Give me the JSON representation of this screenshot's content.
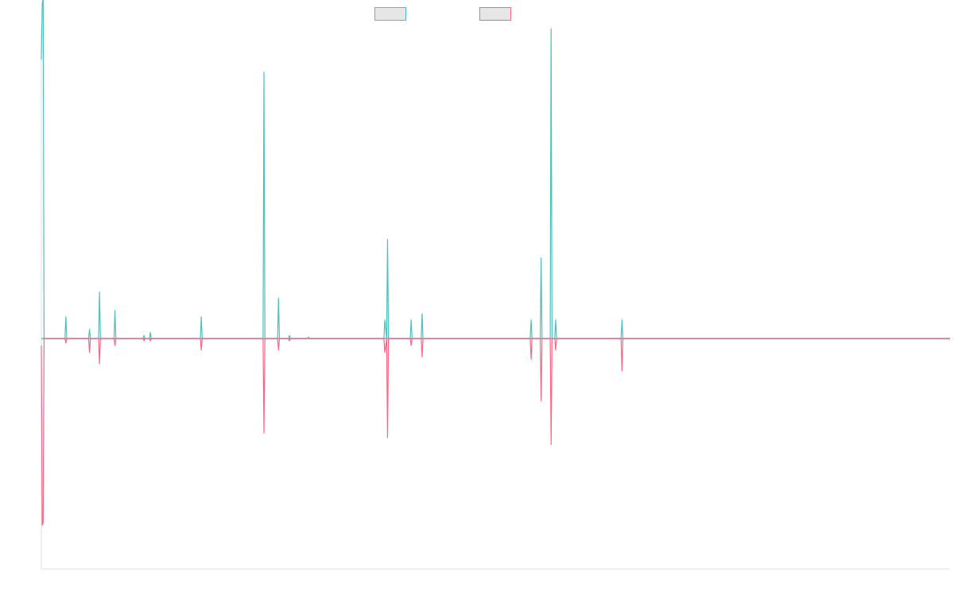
{
  "chart_data": {
    "type": "line",
    "title": "",
    "xlabel": "",
    "ylabel": "",
    "grid": false,
    "legend": {
      "placement": "top-center",
      "entries": [
        {
          "series_index": 0,
          "label": ""
        },
        {
          "series_index": 1,
          "label": ""
        }
      ]
    },
    "x_range": [
      0,
      100
    ],
    "y_range": [
      -100,
      100
    ],
    "baseline": 0,
    "colors": {
      "series_1": "#4bc0c0",
      "series_2": "#ff6384",
      "baseline": "#7aa5b7",
      "axis": "#e0e0e0",
      "legend_fill": "#e6e6e6"
    },
    "series": [
      {
        "color": "#4bc0c0",
        "points": [
          [
            0,
            90
          ],
          [
            0.1,
            108
          ],
          [
            0.2,
            110
          ],
          [
            0.3,
            0
          ],
          [
            2.6,
            0
          ],
          [
            2.7,
            7
          ],
          [
            2.8,
            0
          ],
          [
            5.2,
            0
          ],
          [
            5.3,
            3
          ],
          [
            5.4,
            0
          ],
          [
            6.3,
            0
          ],
          [
            6.4,
            15
          ],
          [
            6.5,
            0
          ],
          [
            8.0,
            0
          ],
          [
            8.1,
            9
          ],
          [
            8.2,
            0
          ],
          [
            11.2,
            0
          ],
          [
            11.3,
            1
          ],
          [
            11.4,
            0
          ],
          [
            11.9,
            0
          ],
          [
            12.0,
            2
          ],
          [
            12.1,
            0
          ],
          [
            17.5,
            0
          ],
          [
            17.6,
            7
          ],
          [
            17.7,
            0
          ],
          [
            24.4,
            0
          ],
          [
            24.5,
            86
          ],
          [
            24.6,
            0
          ],
          [
            26.0,
            0
          ],
          [
            26.1,
            13
          ],
          [
            26.2,
            0
          ],
          [
            27.2,
            0
          ],
          [
            27.3,
            1
          ],
          [
            27.4,
            0
          ],
          [
            29.3,
            0
          ],
          [
            29.4,
            0.5
          ],
          [
            29.5,
            0
          ],
          [
            37.7,
            0
          ],
          [
            37.8,
            6
          ],
          [
            38.0,
            0
          ],
          [
            38.1,
            32
          ],
          [
            38.2,
            0
          ],
          [
            40.6,
            0
          ],
          [
            40.7,
            6
          ],
          [
            40.8,
            0
          ],
          [
            41.8,
            0
          ],
          [
            41.9,
            8
          ],
          [
            42.0,
            0
          ],
          [
            53.8,
            0
          ],
          [
            53.9,
            6
          ],
          [
            54.0,
            0
          ],
          [
            54.9,
            0
          ],
          [
            55.0,
            26
          ],
          [
            55.1,
            0
          ],
          [
            56.0,
            0
          ],
          [
            56.1,
            100
          ],
          [
            56.2,
            0
          ],
          [
            56.5,
            0
          ],
          [
            56.6,
            6
          ],
          [
            56.7,
            0
          ],
          [
            63.8,
            0
          ],
          [
            63.9,
            6
          ],
          [
            64.0,
            0
          ],
          [
            100,
            0
          ]
        ]
      },
      {
        "color": "#ff6384",
        "points": [
          [
            0,
            -3
          ],
          [
            0.1,
            -81
          ],
          [
            0.2,
            -80
          ],
          [
            0.3,
            0
          ],
          [
            2.6,
            0
          ],
          [
            2.7,
            -2
          ],
          [
            2.8,
            0
          ],
          [
            5.2,
            0
          ],
          [
            5.3,
            -6
          ],
          [
            5.4,
            0
          ],
          [
            6.3,
            0
          ],
          [
            6.4,
            -11
          ],
          [
            6.5,
            0
          ],
          [
            8.0,
            0
          ],
          [
            8.1,
            -3
          ],
          [
            8.2,
            0
          ],
          [
            11.2,
            0
          ],
          [
            11.3,
            -1
          ],
          [
            11.4,
            0
          ],
          [
            11.9,
            0
          ],
          [
            12.0,
            -1
          ],
          [
            12.1,
            0
          ],
          [
            17.5,
            0
          ],
          [
            17.6,
            -5
          ],
          [
            17.7,
            0
          ],
          [
            24.4,
            0
          ],
          [
            24.5,
            -41
          ],
          [
            24.6,
            0
          ],
          [
            26.0,
            0
          ],
          [
            26.1,
            -5
          ],
          [
            26.2,
            0
          ],
          [
            27.2,
            0
          ],
          [
            27.3,
            -1
          ],
          [
            27.4,
            0
          ],
          [
            37.7,
            0
          ],
          [
            37.8,
            -6
          ],
          [
            38.0,
            0
          ],
          [
            38.1,
            -43
          ],
          [
            38.2,
            0
          ],
          [
            40.6,
            0
          ],
          [
            40.7,
            -3
          ],
          [
            40.8,
            0
          ],
          [
            41.8,
            0
          ],
          [
            41.9,
            -8
          ],
          [
            42.0,
            0
          ],
          [
            53.8,
            0
          ],
          [
            53.9,
            -9
          ],
          [
            54.0,
            0
          ],
          [
            54.9,
            0
          ],
          [
            55.0,
            -27
          ],
          [
            55.1,
            0
          ],
          [
            56.0,
            0
          ],
          [
            56.1,
            -46
          ],
          [
            56.2,
            0
          ],
          [
            56.5,
            0
          ],
          [
            56.6,
            -5
          ],
          [
            56.7,
            0
          ],
          [
            63.8,
            0
          ],
          [
            63.9,
            -14
          ],
          [
            64.0,
            0
          ],
          [
            100,
            0
          ]
        ]
      }
    ]
  }
}
